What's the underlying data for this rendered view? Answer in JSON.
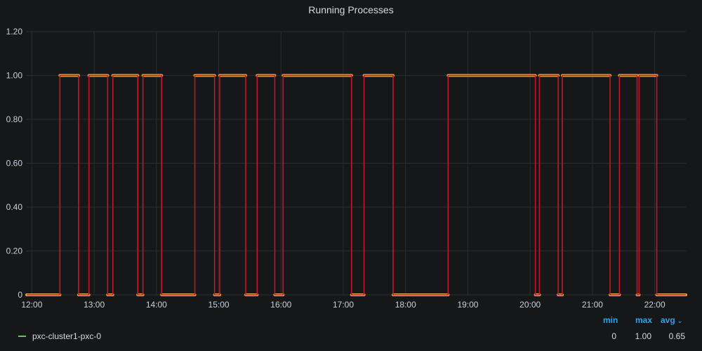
{
  "panel": {
    "title": "Running Processes"
  },
  "colors": {
    "background": "#161719",
    "grid": "#2c2d30",
    "text": "#c7d0d9",
    "series_line": "#c4162a",
    "series_points": "#e0b050",
    "legend_swatch": "#73bf69",
    "legend_header": "#33a2e5"
  },
  "legend": {
    "headers": {
      "min": "min",
      "max": "max",
      "avg": "avg"
    },
    "sort_icon": "chevron-down-icon",
    "series": [
      {
        "name": "pxc-cluster1-pxc-0",
        "min": "0",
        "max": "1.00",
        "avg": "0.65"
      }
    ]
  },
  "chart_data": {
    "type": "line",
    "title": "Running Processes",
    "xlabel": "",
    "ylabel": "",
    "x_range": [
      "11:55",
      "22:30"
    ],
    "ylim": [
      0,
      1.2
    ],
    "y_ticks": [
      "0",
      "0.20",
      "0.40",
      "0.60",
      "0.80",
      "1.00",
      "1.20"
    ],
    "x_ticks": [
      "12:00",
      "13:00",
      "14:00",
      "15:00",
      "16:00",
      "17:00",
      "18:00",
      "19:00",
      "20:00",
      "21:00",
      "22:00"
    ],
    "grid": true,
    "legend_position": "bottom",
    "series": [
      {
        "name": "pxc-cluster1-pxc-0",
        "points": [
          [
            "11:55",
            0
          ],
          [
            "12:27",
            0
          ],
          [
            "12:27",
            1
          ],
          [
            "12:45",
            1
          ],
          [
            "12:45",
            0
          ],
          [
            "12:55",
            0
          ],
          [
            "12:55",
            1
          ],
          [
            "13:13",
            1
          ],
          [
            "13:13",
            0
          ],
          [
            "13:18",
            0
          ],
          [
            "13:18",
            1
          ],
          [
            "13:42",
            1
          ],
          [
            "13:42",
            0
          ],
          [
            "13:47",
            0
          ],
          [
            "13:47",
            1
          ],
          [
            "14:05",
            1
          ],
          [
            "14:05",
            0
          ],
          [
            "14:37",
            0
          ],
          [
            "14:37",
            1
          ],
          [
            "14:56",
            1
          ],
          [
            "14:56",
            0
          ],
          [
            "15:01",
            0
          ],
          [
            "15:01",
            1
          ],
          [
            "15:26",
            1
          ],
          [
            "15:26",
            0
          ],
          [
            "15:37",
            0
          ],
          [
            "15:37",
            1
          ],
          [
            "15:54",
            1
          ],
          [
            "15:54",
            0
          ],
          [
            "16:02",
            0
          ],
          [
            "16:02",
            1
          ],
          [
            "17:08",
            1
          ],
          [
            "17:08",
            0
          ],
          [
            "17:20",
            0
          ],
          [
            "17:20",
            1
          ],
          [
            "17:48",
            1
          ],
          [
            "17:48",
            0
          ],
          [
            "18:41",
            0
          ],
          [
            "18:41",
            1
          ],
          [
            "20:05",
            1
          ],
          [
            "20:05",
            0
          ],
          [
            "20:09",
            0
          ],
          [
            "20:09",
            1
          ],
          [
            "20:27",
            1
          ],
          [
            "20:27",
            0
          ],
          [
            "20:31",
            0
          ],
          [
            "20:31",
            1
          ],
          [
            "21:17",
            1
          ],
          [
            "21:17",
            0
          ],
          [
            "21:26",
            0
          ],
          [
            "21:26",
            1
          ],
          [
            "21:43",
            1
          ],
          [
            "21:43",
            0
          ],
          [
            "21:45",
            0
          ],
          [
            "21:45",
            1
          ],
          [
            "22:02",
            1
          ],
          [
            "22:02",
            0
          ],
          [
            "22:30",
            0
          ]
        ]
      }
    ]
  }
}
